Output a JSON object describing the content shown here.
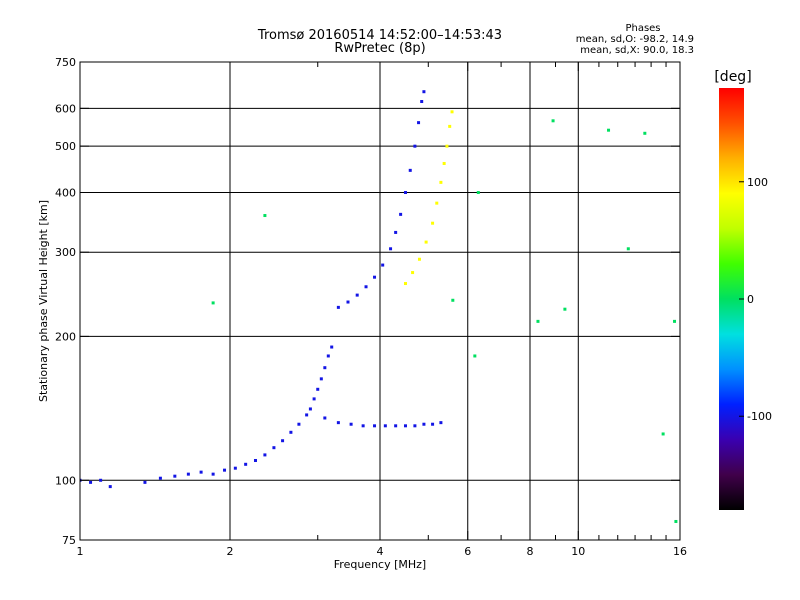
{
  "chart_data": {
    "type": "scatter",
    "title": "Tromsø 20160514 14:52:00–14:53:43",
    "subtitle": "RwPretec (8p)",
    "stats": {
      "heading": "Phases",
      "line_o": "mean, sd,O: -98.2, 14.9",
      "line_x": "mean, sd,X:  90.0, 18.3"
    },
    "xlabel": "Frequency [MHz]",
    "ylabel": "Stationary phase Virtual Height [km]",
    "xscale": "log",
    "yscale": "log",
    "xlim": [
      1,
      16
    ],
    "ylim": [
      75,
      750
    ],
    "xticks": [
      1,
      2,
      4,
      6,
      8,
      10,
      16
    ],
    "xtick_labels": [
      "1",
      "2",
      "4",
      "6",
      "8",
      "10",
      "16"
    ],
    "x_minor_ticks": [
      3,
      5,
      7,
      9,
      11,
      12,
      13,
      14,
      15
    ],
    "yticks": [
      75,
      100,
      200,
      300,
      400,
      500,
      600,
      750
    ],
    "ytick_labels": [
      "75",
      "100",
      "200",
      "300",
      "400",
      "500",
      "600",
      "750"
    ],
    "grid_x": [
      2,
      4,
      6,
      8,
      10
    ],
    "grid_y": [
      100,
      200,
      300,
      400,
      500,
      600
    ],
    "colorbar": {
      "unit": "[deg]",
      "range": [
        -180,
        180
      ],
      "ticks": [
        100,
        0,
        -100
      ],
      "tick_labels": [
        "100",
        "0",
        "-100"
      ],
      "colormap": [
        "#000000",
        "#40004a",
        "#3a00b0",
        "#0020ff",
        "#0090ff",
        "#00e0e0",
        "#00e060",
        "#40ff00",
        "#c0ff00",
        "#ffff00",
        "#ffb000",
        "#ff5000",
        "#ff0000"
      ]
    },
    "series": [
      {
        "description": "o-mode bottomside trace",
        "phase": -100,
        "points": [
          [
            1.0,
            100
          ],
          [
            1.05,
            99
          ],
          [
            1.1,
            100
          ],
          [
            1.15,
            97
          ],
          [
            1.35,
            99
          ],
          [
            1.45,
            101
          ],
          [
            1.55,
            102
          ],
          [
            1.65,
            103
          ],
          [
            1.75,
            104
          ],
          [
            1.85,
            103
          ],
          [
            1.95,
            105
          ],
          [
            2.05,
            106
          ],
          [
            2.15,
            108
          ],
          [
            2.25,
            110
          ],
          [
            2.35,
            113
          ],
          [
            2.45,
            117
          ],
          [
            2.55,
            121
          ],
          [
            2.65,
            126
          ],
          [
            2.75,
            131
          ],
          [
            2.85,
            137
          ],
          [
            2.9,
            141
          ],
          [
            2.95,
            148
          ],
          [
            3.0,
            155
          ],
          [
            3.05,
            163
          ],
          [
            3.1,
            172
          ],
          [
            3.15,
            182
          ],
          [
            3.2,
            190
          ]
        ]
      },
      {
        "description": "o-mode Es/E-region trace",
        "phase": -100,
        "points": [
          [
            3.1,
            135
          ],
          [
            3.3,
            132
          ],
          [
            3.5,
            131
          ],
          [
            3.7,
            130
          ],
          [
            3.9,
            130
          ],
          [
            4.1,
            130
          ],
          [
            4.3,
            130
          ],
          [
            4.5,
            130
          ],
          [
            4.7,
            130
          ],
          [
            4.9,
            131
          ],
          [
            5.1,
            131
          ],
          [
            5.3,
            132
          ]
        ]
      },
      {
        "description": "o-mode F-region trace",
        "phase": -100,
        "points": [
          [
            3.3,
            230
          ],
          [
            3.45,
            236
          ],
          [
            3.6,
            244
          ],
          [
            3.75,
            254
          ],
          [
            3.9,
            266
          ],
          [
            4.05,
            282
          ],
          [
            4.2,
            305
          ],
          [
            4.3,
            330
          ],
          [
            4.4,
            360
          ],
          [
            4.5,
            400
          ],
          [
            4.6,
            445
          ],
          [
            4.7,
            500
          ],
          [
            4.78,
            560
          ],
          [
            4.85,
            620
          ],
          [
            4.9,
            650
          ]
        ]
      },
      {
        "description": "x-mode F-region trace",
        "phase": 90,
        "points": [
          [
            4.5,
            258
          ],
          [
            4.65,
            272
          ],
          [
            4.8,
            290
          ],
          [
            4.95,
            315
          ],
          [
            5.1,
            345
          ],
          [
            5.2,
            380
          ],
          [
            5.3,
            420
          ],
          [
            5.38,
            460
          ],
          [
            5.45,
            500
          ],
          [
            5.52,
            550
          ],
          [
            5.58,
            590
          ]
        ]
      },
      {
        "description": "scattered echoes",
        "phase": 0,
        "points": [
          [
            1.85,
            235
          ],
          [
            2.35,
            358
          ],
          [
            5.6,
            238
          ],
          [
            6.2,
            182
          ],
          [
            6.3,
            400
          ],
          [
            8.3,
            215
          ],
          [
            8.9,
            565
          ],
          [
            9.4,
            228
          ],
          [
            11.5,
            540
          ],
          [
            12.6,
            305
          ],
          [
            13.6,
            532
          ],
          [
            14.8,
            125
          ],
          [
            15.6,
            215
          ],
          [
            15.7,
            82
          ]
        ]
      }
    ]
  }
}
